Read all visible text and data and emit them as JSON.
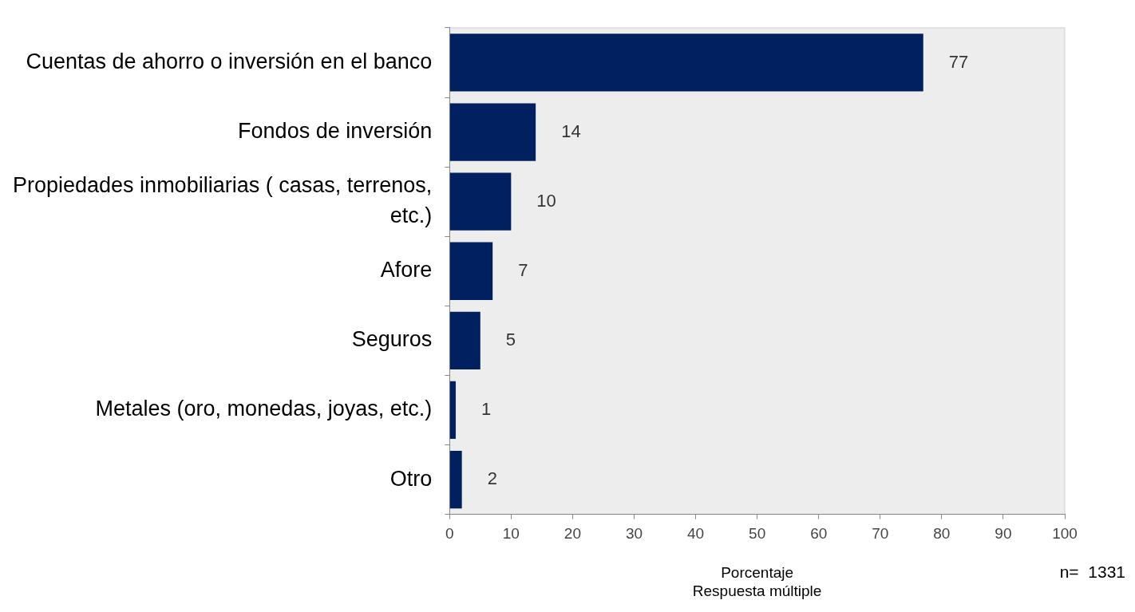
{
  "chart_data": {
    "type": "bar",
    "orientation": "horizontal",
    "xlabel": "Porcentaje\nRespuesta múltiple",
    "categories": [
      "Cuentas de ahorro o inversión en el banco",
      "Fondos de inversión",
      "Propiedades inmobiliarias ( casas, terrenos, etc.)",
      "Afore",
      "Seguros",
      "Metales (oro, monedas, joyas, etc.)",
      "Otro"
    ],
    "values": [
      77,
      14,
      10,
      7,
      5,
      1,
      2
    ],
    "color": "#002060",
    "data_labels": true,
    "xlim": [
      0,
      100
    ],
    "xticks": [
      0,
      10,
      20,
      30,
      40,
      50,
      60,
      70,
      80,
      90,
      100
    ],
    "grid": false,
    "legend": false,
    "annotations": [
      "n=  1331"
    ]
  }
}
